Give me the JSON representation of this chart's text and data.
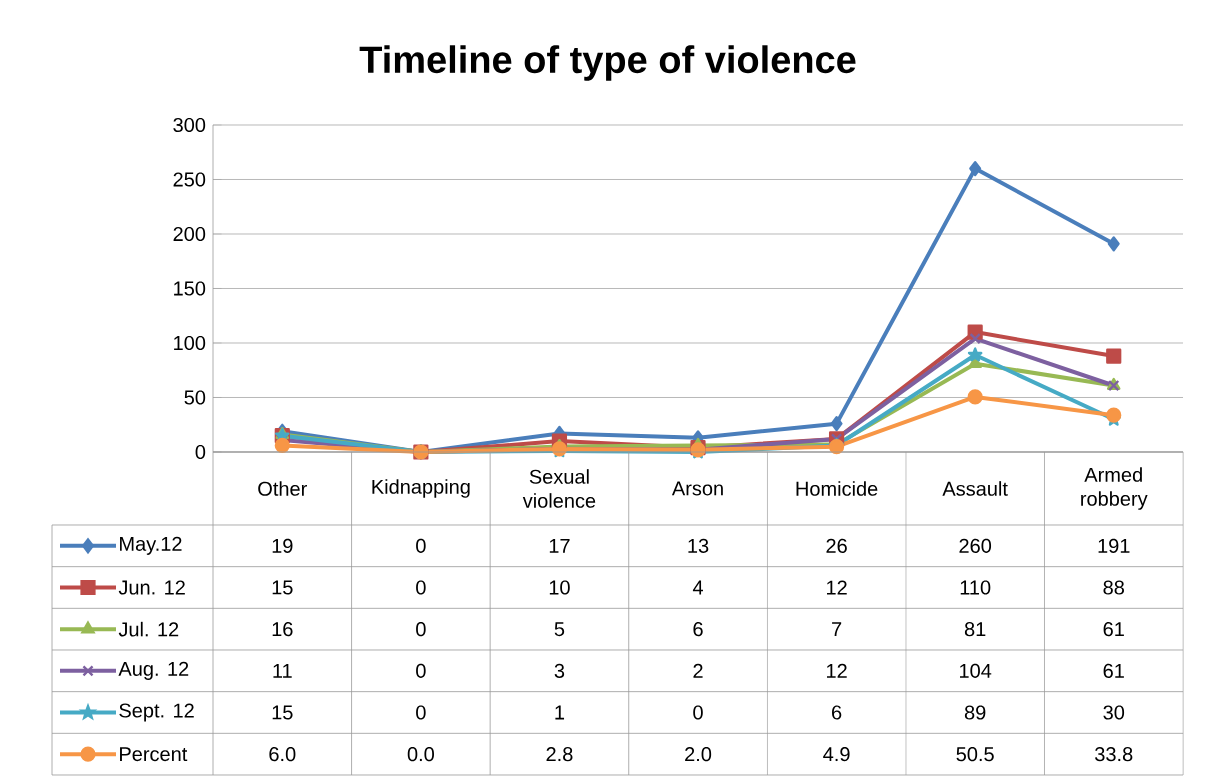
{
  "chart_data": {
    "type": "line",
    "title": "Timeline of type of violence",
    "categories": [
      "Other",
      "Kidnapping",
      "Sexual violence",
      "Arson",
      "Homicide",
      "Assault",
      "Armed robbery"
    ],
    "ylim": [
      0,
      300
    ],
    "yticks": [
      0,
      50,
      100,
      150,
      200,
      250,
      300
    ],
    "grid": "y",
    "legend": "bottom left",
    "series": [
      {
        "name": "May.12",
        "color": "#4a7ebb",
        "marker": "diamond",
        "values": [
          19,
          0,
          17,
          13,
          26,
          260,
          191
        ],
        "value_labels": [
          "19",
          "0",
          "17",
          "13",
          "26",
          "260",
          "191"
        ]
      },
      {
        "name": "Jun. 12",
        "color": "#be4b48",
        "marker": "square",
        "values": [
          15,
          0,
          10,
          4,
          12,
          110,
          88
        ],
        "value_labels": [
          "15",
          "0",
          "10",
          "4",
          "12",
          "110",
          "88"
        ]
      },
      {
        "name": "Jul. 12",
        "color": "#98b954",
        "marker": "triangle",
        "values": [
          16,
          0,
          5,
          6,
          7,
          81,
          61
        ],
        "value_labels": [
          "16",
          "0",
          "5",
          "6",
          "7",
          "81",
          "61"
        ]
      },
      {
        "name": "Aug. 12",
        "color": "#7d60a0",
        "marker": "cross",
        "values": [
          11,
          0,
          3,
          2,
          12,
          104,
          61
        ],
        "value_labels": [
          "11",
          "0",
          "3",
          "2",
          "12",
          "104",
          "61"
        ]
      },
      {
        "name": "Sept. 12",
        "color": "#46aac5",
        "marker": "star",
        "values": [
          15,
          0,
          1,
          0,
          6,
          89,
          30
        ],
        "value_labels": [
          "15",
          "0",
          "1",
          "0",
          "6",
          "89",
          "30"
        ]
      },
      {
        "name": "Percent",
        "color": "#f79646",
        "marker": "circle",
        "values": [
          6.0,
          0.0,
          2.8,
          2.0,
          4.9,
          50.5,
          33.8
        ],
        "value_labels": [
          "6.0",
          "0.0",
          "2.8",
          "2.0",
          "4.9",
          "50.5",
          "33.8"
        ]
      }
    ]
  }
}
